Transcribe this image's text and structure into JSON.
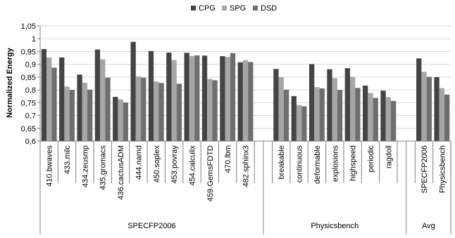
{
  "chart_data": {
    "type": "bar",
    "title": "",
    "ylabel": "Normalized Energy",
    "xlabel": "",
    "ylim": [
      0.6,
      1.05
    ],
    "yticks": [
      "0,6",
      "0,65",
      "0,7",
      "0,75",
      "0,8",
      "0,85",
      "0,9",
      "0,95",
      "1",
      "1,05"
    ],
    "grid": true,
    "legend_position": "top-center",
    "colors": {
      "CPG": "#444444",
      "SPG": "#a6a6a6",
      "DSD": "#6e6e6e"
    },
    "series_names": [
      "CPG",
      "SPG",
      "DSD"
    ],
    "groups": [
      {
        "label": "SPECFP2006",
        "categories": [
          {
            "label": "410.bwaves",
            "values": [
              0.96,
              0.927,
              0.887
            ]
          },
          {
            "label": "433.milc",
            "values": [
              0.927,
              0.813,
              0.8
            ]
          },
          {
            "label": "434.zeusmp",
            "values": [
              0.86,
              0.828,
              0.801
            ]
          },
          {
            "label": "435.gromacs",
            "values": [
              0.958,
              0.92,
              0.848
            ]
          },
          {
            "label": "436.cactusADM",
            "values": [
              0.773,
              0.763,
              0.751
            ]
          },
          {
            "label": "444.namd",
            "values": [
              0.988,
              0.853,
              0.848
            ]
          },
          {
            "label": "450.soplex",
            "values": [
              0.952,
              0.833,
              0.827
            ]
          },
          {
            "label": "453.povray",
            "values": [
              0.946,
              0.917,
              0.824
            ]
          },
          {
            "label": "454.calculix",
            "values": [
              0.945,
              0.933,
              0.935
            ]
          },
          {
            "label": "459.GemsFDTD",
            "values": [
              0.934,
              0.843,
              0.838
            ]
          },
          {
            "label": "470.lbm",
            "values": [
              0.932,
              0.929,
              0.944
            ]
          },
          {
            "label": "482.sphinx3",
            "values": [
              0.908,
              0.916,
              0.909
            ]
          }
        ]
      },
      {
        "label": "Physicsbench",
        "categories": [
          {
            "label": "breakable",
            "values": [
              0.882,
              0.85,
              0.801
            ]
          },
          {
            "label": "continuous",
            "values": [
              0.776,
              0.741,
              0.736
            ]
          },
          {
            "label": "deformable",
            "values": [
              0.901,
              0.811,
              0.806
            ]
          },
          {
            "label": "explosions",
            "values": [
              0.881,
              0.846,
              0.8
            ]
          },
          {
            "label": "highspeed",
            "values": [
              0.885,
              0.851,
              0.808
            ]
          },
          {
            "label": "periodic",
            "values": [
              0.817,
              0.788,
              0.769
            ]
          },
          {
            "label": "ragdoll",
            "values": [
              0.797,
              0.772,
              0.757
            ]
          }
        ]
      },
      {
        "label": "Avg",
        "categories": [
          {
            "label": "SPECFP2006",
            "values": [
              0.923,
              0.871,
              0.851
            ]
          },
          {
            "label": "Physicsbench",
            "values": [
              0.85,
              0.807,
              0.782
            ]
          }
        ]
      }
    ]
  }
}
